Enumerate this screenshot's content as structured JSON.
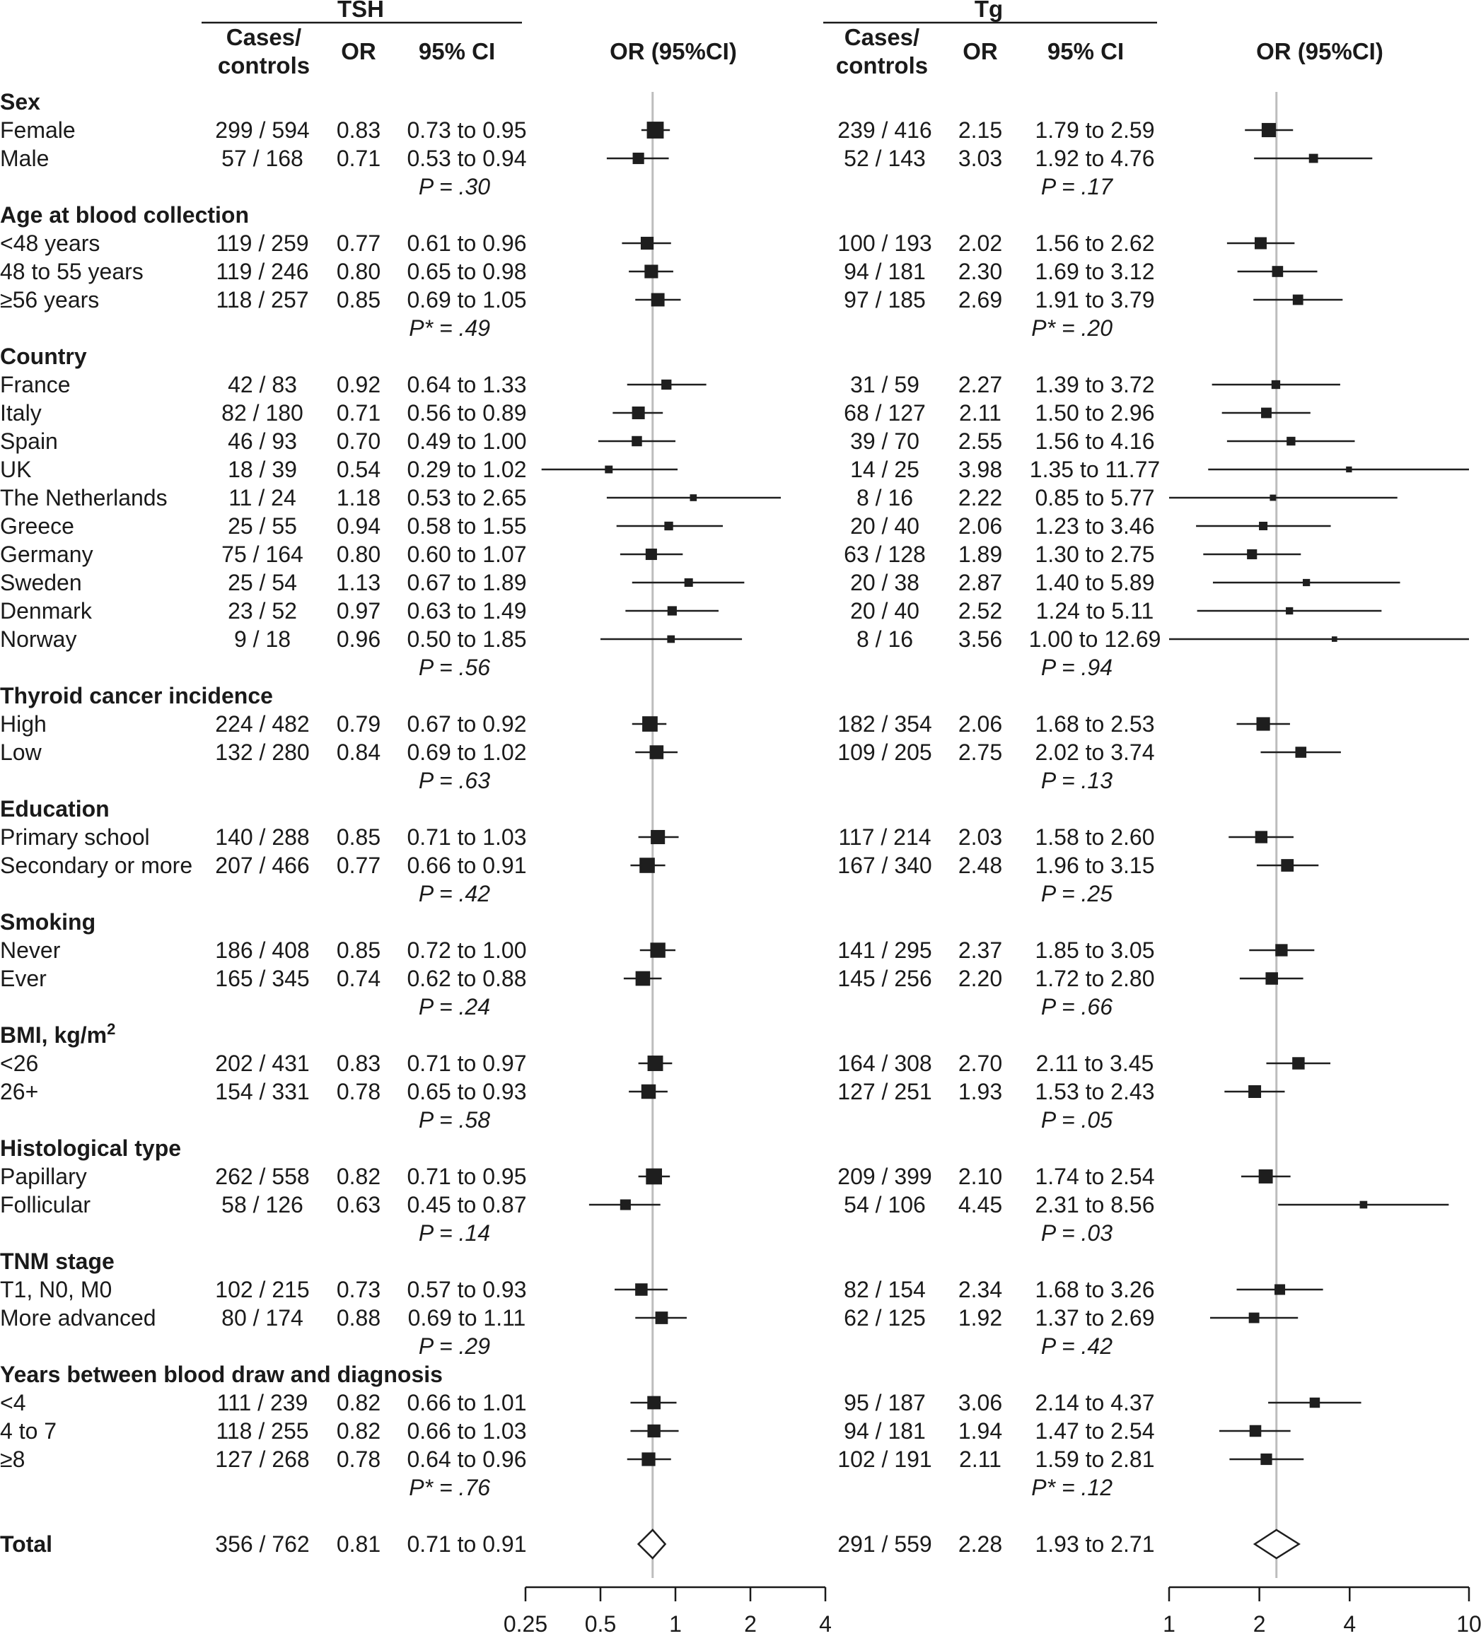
{
  "panels": {
    "tsh": {
      "title": "TSH"
    },
    "tg": {
      "title": "Tg"
    }
  },
  "columns": {
    "cases_line1": "Cases/",
    "cases_line2": "controls",
    "or": "OR",
    "ci": "95% CI",
    "plot": "OR (95%CI)"
  },
  "colors": {
    "box": "#1e1e1e",
    "line": "#1e1e1e",
    "refline": "#bdbdbd",
    "text": "#1a1a1a"
  },
  "chart_data": {
    "type": "forest",
    "x_scale": "log",
    "tsh_axis": {
      "range": [
        0.25,
        4
      ],
      "ticks": [
        0.25,
        0.5,
        1,
        2,
        4
      ],
      "tick_labels": [
        "0.25",
        "0.5",
        "1",
        "2",
        "4"
      ],
      "reference": 0.81
    },
    "tg_axis": {
      "range": [
        1,
        10
      ],
      "ticks": [
        1,
        2,
        4,
        10
      ],
      "tick_labels": [
        "1",
        "2",
        "4",
        "10"
      ],
      "reference": 2.28
    },
    "groups": [
      {
        "title": "Sex",
        "title_sup": "",
        "rows": [
          {
            "label": "Female",
            "tsh": {
              "cc": "299 / 594",
              "or": 0.83,
              "lo": 0.73,
              "hi": 0.95,
              "or_text": "0.83",
              "ci_text": "0.73 to 0.95"
            },
            "tg": {
              "cc": "239 / 416",
              "or": 2.15,
              "lo": 1.79,
              "hi": 2.59,
              "or_text": "2.15",
              "ci_text": "1.79 to 2.59"
            }
          },
          {
            "label": "Male",
            "tsh": {
              "cc": "57 / 168",
              "or": 0.71,
              "lo": 0.53,
              "hi": 0.94,
              "or_text": "0.71",
              "ci_text": "0.53 to 0.94"
            },
            "tg": {
              "cc": "52 / 143",
              "or": 3.03,
              "lo": 1.92,
              "hi": 4.76,
              "or_text": "3.03",
              "ci_text": "1.92 to 4.76"
            }
          }
        ],
        "p_tsh": "P = .30",
        "p_tg": "P = .17"
      },
      {
        "title": "Age at blood collection",
        "title_sup": "",
        "rows": [
          {
            "label": "<48 years",
            "tsh": {
              "cc": "119 / 259",
              "or": 0.77,
              "lo": 0.61,
              "hi": 0.96,
              "or_text": "0.77",
              "ci_text": "0.61 to 0.96"
            },
            "tg": {
              "cc": "100 / 193",
              "or": 2.02,
              "lo": 1.56,
              "hi": 2.62,
              "or_text": "2.02",
              "ci_text": "1.56 to 2.62"
            }
          },
          {
            "label": "48 to 55 years",
            "tsh": {
              "cc": "119 / 246",
              "or": 0.8,
              "lo": 0.65,
              "hi": 0.98,
              "or_text": "0.80",
              "ci_text": "0.65 to 0.98"
            },
            "tg": {
              "cc": "94 / 181",
              "or": 2.3,
              "lo": 1.69,
              "hi": 3.12,
              "or_text": "2.30",
              "ci_text": "1.69 to 3.12"
            }
          },
          {
            "label": "≥56 years",
            "tsh": {
              "cc": "118 / 257",
              "or": 0.85,
              "lo": 0.69,
              "hi": 1.05,
              "or_text": "0.85",
              "ci_text": "0.69 to 1.05"
            },
            "tg": {
              "cc": "97 / 185",
              "or": 2.69,
              "lo": 1.91,
              "hi": 3.79,
              "or_text": "2.69",
              "ci_text": "1.91 to 3.79"
            }
          }
        ],
        "p_tsh": "P* = .49",
        "p_tg": "P* = .20"
      },
      {
        "title": "Country",
        "title_sup": "",
        "rows": [
          {
            "label": "France",
            "tsh": {
              "cc": "42 / 83",
              "or": 0.92,
              "lo": 0.64,
              "hi": 1.33,
              "or_text": "0.92",
              "ci_text": "0.64 to 1.33"
            },
            "tg": {
              "cc": "31 / 59",
              "or": 2.27,
              "lo": 1.39,
              "hi": 3.72,
              "or_text": "2.27",
              "ci_text": "1.39 to 3.72"
            }
          },
          {
            "label": "Italy",
            "tsh": {
              "cc": "82 / 180",
              "or": 0.71,
              "lo": 0.56,
              "hi": 0.89,
              "or_text": "0.71",
              "ci_text": "0.56 to 0.89"
            },
            "tg": {
              "cc": "68 / 127",
              "or": 2.11,
              "lo": 1.5,
              "hi": 2.96,
              "or_text": "2.11",
              "ci_text": "1.50 to 2.96"
            }
          },
          {
            "label": "Spain",
            "tsh": {
              "cc": "46 / 93",
              "or": 0.7,
              "lo": 0.49,
              "hi": 1.0,
              "or_text": "0.70",
              "ci_text": "0.49 to 1.00"
            },
            "tg": {
              "cc": "39 / 70",
              "or": 2.55,
              "lo": 1.56,
              "hi": 4.16,
              "or_text": "2.55",
              "ci_text": "1.56 to 4.16"
            }
          },
          {
            "label": "UK",
            "tsh": {
              "cc": "18 / 39",
              "or": 0.54,
              "lo": 0.29,
              "hi": 1.02,
              "or_text": "0.54",
              "ci_text": "0.29 to 1.02"
            },
            "tg": {
              "cc": "14 / 25",
              "or": 3.98,
              "lo": 1.35,
              "hi": 11.77,
              "or_text": "3.98",
              "ci_text": "1.35 to 11.77"
            }
          },
          {
            "label": "The Netherlands",
            "tsh": {
              "cc": "11 / 24",
              "or": 1.18,
              "lo": 0.53,
              "hi": 2.65,
              "or_text": "1.18",
              "ci_text": "0.53 to 2.65"
            },
            "tg": {
              "cc": "8 / 16",
              "or": 2.22,
              "lo": 0.85,
              "hi": 5.77,
              "or_text": "2.22",
              "ci_text": "0.85 to 5.77"
            }
          },
          {
            "label": "Greece",
            "tsh": {
              "cc": "25 / 55",
              "or": 0.94,
              "lo": 0.58,
              "hi": 1.55,
              "or_text": "0.94",
              "ci_text": "0.58 to 1.55"
            },
            "tg": {
              "cc": "20 / 40",
              "or": 2.06,
              "lo": 1.23,
              "hi": 3.46,
              "or_text": "2.06",
              "ci_text": "1.23 to 3.46"
            }
          },
          {
            "label": "Germany",
            "tsh": {
              "cc": "75 / 164",
              "or": 0.8,
              "lo": 0.6,
              "hi": 1.07,
              "or_text": "0.80",
              "ci_text": "0.60 to 1.07"
            },
            "tg": {
              "cc": "63 / 128",
              "or": 1.89,
              "lo": 1.3,
              "hi": 2.75,
              "or_text": "1.89",
              "ci_text": "1.30 to 2.75"
            }
          },
          {
            "label": "Sweden",
            "tsh": {
              "cc": "25 / 54",
              "or": 1.13,
              "lo": 0.67,
              "hi": 1.89,
              "or_text": "1.13",
              "ci_text": "0.67 to 1.89"
            },
            "tg": {
              "cc": "20 / 38",
              "or": 2.87,
              "lo": 1.4,
              "hi": 5.89,
              "or_text": "2.87",
              "ci_text": "1.40 to 5.89"
            }
          },
          {
            "label": "Denmark",
            "tsh": {
              "cc": "23 / 52",
              "or": 0.97,
              "lo": 0.63,
              "hi": 1.49,
              "or_text": "0.97",
              "ci_text": "0.63 to 1.49"
            },
            "tg": {
              "cc": "20 / 40",
              "or": 2.52,
              "lo": 1.24,
              "hi": 5.11,
              "or_text": "2.52",
              "ci_text": "1.24 to 5.11"
            }
          },
          {
            "label": "Norway",
            "tsh": {
              "cc": "9 / 18",
              "or": 0.96,
              "lo": 0.5,
              "hi": 1.85,
              "or_text": "0.96",
              "ci_text": "0.50 to 1.85"
            },
            "tg": {
              "cc": "8 / 16",
              "or": 3.56,
              "lo": 1.0,
              "hi": 12.69,
              "or_text": "3.56",
              "ci_text": "1.00 to 12.69"
            }
          }
        ],
        "p_tsh": "P = .56",
        "p_tg": "P = .94"
      },
      {
        "title": "Thyroid cancer incidence",
        "title_sup": "",
        "rows": [
          {
            "label": "High",
            "tsh": {
              "cc": "224 / 482",
              "or": 0.79,
              "lo": 0.67,
              "hi": 0.92,
              "or_text": "0.79",
              "ci_text": "0.67 to 0.92"
            },
            "tg": {
              "cc": "182 / 354",
              "or": 2.06,
              "lo": 1.68,
              "hi": 2.53,
              "or_text": "2.06",
              "ci_text": "1.68 to 2.53"
            }
          },
          {
            "label": "Low",
            "tsh": {
              "cc": "132 / 280",
              "or": 0.84,
              "lo": 0.69,
              "hi": 1.02,
              "or_text": "0.84",
              "ci_text": "0.69 to 1.02"
            },
            "tg": {
              "cc": "109 / 205",
              "or": 2.75,
              "lo": 2.02,
              "hi": 3.74,
              "or_text": "2.75",
              "ci_text": "2.02 to 3.74"
            }
          }
        ],
        "p_tsh": "P = .63",
        "p_tg": "P = .13"
      },
      {
        "title": "Education",
        "title_sup": "",
        "rows": [
          {
            "label": "Primary school",
            "tsh": {
              "cc": "140 / 288",
              "or": 0.85,
              "lo": 0.71,
              "hi": 1.03,
              "or_text": "0.85",
              "ci_text": "0.71 to 1.03"
            },
            "tg": {
              "cc": "117 / 214",
              "or": 2.03,
              "lo": 1.58,
              "hi": 2.6,
              "or_text": "2.03",
              "ci_text": "1.58 to 2.60"
            }
          },
          {
            "label": "Secondary or more",
            "tsh": {
              "cc": "207 / 466",
              "or": 0.77,
              "lo": 0.66,
              "hi": 0.91,
              "or_text": "0.77",
              "ci_text": "0.66 to 0.91"
            },
            "tg": {
              "cc": "167 / 340",
              "or": 2.48,
              "lo": 1.96,
              "hi": 3.15,
              "or_text": "2.48",
              "ci_text": "1.96 to 3.15"
            }
          }
        ],
        "p_tsh": "P = .42",
        "p_tg": "P = .25"
      },
      {
        "title": "Smoking",
        "title_sup": "",
        "rows": [
          {
            "label": "Never",
            "tsh": {
              "cc": "186 / 408",
              "or": 0.85,
              "lo": 0.72,
              "hi": 1.0,
              "or_text": "0.85",
              "ci_text": "0.72 to 1.00"
            },
            "tg": {
              "cc": "141 / 295",
              "or": 2.37,
              "lo": 1.85,
              "hi": 3.05,
              "or_text": "2.37",
              "ci_text": "1.85 to 3.05"
            }
          },
          {
            "label": "Ever",
            "tsh": {
              "cc": "165 / 345",
              "or": 0.74,
              "lo": 0.62,
              "hi": 0.88,
              "or_text": "0.74",
              "ci_text": "0.62 to 0.88"
            },
            "tg": {
              "cc": "145 / 256",
              "or": 2.2,
              "lo": 1.72,
              "hi": 2.8,
              "or_text": "2.20",
              "ci_text": "1.72 to 2.80"
            }
          }
        ],
        "p_tsh": "P = .24",
        "p_tg": "P = .66"
      },
      {
        "title": "BMI, kg/m",
        "title_sup": "2",
        "rows": [
          {
            "label": "<26",
            "tsh": {
              "cc": "202 / 431",
              "or": 0.83,
              "lo": 0.71,
              "hi": 0.97,
              "or_text": "0.83",
              "ci_text": "0.71 to 0.97"
            },
            "tg": {
              "cc": "164 / 308",
              "or": 2.7,
              "lo": 2.11,
              "hi": 3.45,
              "or_text": "2.70",
              "ci_text": "2.11 to 3.45"
            }
          },
          {
            "label": "26+",
            "tsh": {
              "cc": "154 / 331",
              "or": 0.78,
              "lo": 0.65,
              "hi": 0.93,
              "or_text": "0.78",
              "ci_text": "0.65 to 0.93"
            },
            "tg": {
              "cc": "127 / 251",
              "or": 1.93,
              "lo": 1.53,
              "hi": 2.43,
              "or_text": "1.93",
              "ci_text": "1.53 to 2.43"
            }
          }
        ],
        "p_tsh": "P = .58",
        "p_tg": "P = .05"
      },
      {
        "title": "Histological type",
        "title_sup": "",
        "rows": [
          {
            "label": "Papillary",
            "tsh": {
              "cc": "262 / 558",
              "or": 0.82,
              "lo": 0.71,
              "hi": 0.95,
              "or_text": "0.82",
              "ci_text": "0.71 to 0.95"
            },
            "tg": {
              "cc": "209 / 399",
              "or": 2.1,
              "lo": 1.74,
              "hi": 2.54,
              "or_text": "2.10",
              "ci_text": "1.74 to 2.54"
            }
          },
          {
            "label": "Follicular",
            "tsh": {
              "cc": "58 / 126",
              "or": 0.63,
              "lo": 0.45,
              "hi": 0.87,
              "or_text": "0.63",
              "ci_text": "0.45 to 0.87"
            },
            "tg": {
              "cc": "54 / 106",
              "or": 4.45,
              "lo": 2.31,
              "hi": 8.56,
              "or_text": "4.45",
              "ci_text": "2.31 to 8.56"
            }
          }
        ],
        "p_tsh": "P = .14",
        "p_tg": "P = .03"
      },
      {
        "title": "TNM stage",
        "title_sup": "",
        "rows": [
          {
            "label": "T1, N0, M0",
            "tsh": {
              "cc": "102 / 215",
              "or": 0.73,
              "lo": 0.57,
              "hi": 0.93,
              "or_text": "0.73",
              "ci_text": "0.57 to 0.93"
            },
            "tg": {
              "cc": "82 / 154",
              "or": 2.34,
              "lo": 1.68,
              "hi": 3.26,
              "or_text": "2.34",
              "ci_text": "1.68 to 3.26"
            }
          },
          {
            "label": "More advanced",
            "tsh": {
              "cc": "80 / 174",
              "or": 0.88,
              "lo": 0.69,
              "hi": 1.11,
              "or_text": "0.88",
              "ci_text": "0.69 to 1.11"
            },
            "tg": {
              "cc": "62 / 125",
              "or": 1.92,
              "lo": 1.37,
              "hi": 2.69,
              "or_text": "1.92",
              "ci_text": "1.37 to 2.69"
            }
          }
        ],
        "p_tsh": "P = .29",
        "p_tg": "P = .42"
      },
      {
        "title": "Years between blood draw and diagnosis",
        "title_sup": "",
        "rows": [
          {
            "label": "<4",
            "tsh": {
              "cc": "111 / 239",
              "or": 0.82,
              "lo": 0.66,
              "hi": 1.01,
              "or_text": "0.82",
              "ci_text": "0.66 to 1.01"
            },
            "tg": {
              "cc": "95 / 187",
              "or": 3.06,
              "lo": 2.14,
              "hi": 4.37,
              "or_text": "3.06",
              "ci_text": "2.14 to 4.37"
            }
          },
          {
            "label": "4 to 7",
            "tsh": {
              "cc": "118 / 255",
              "or": 0.82,
              "lo": 0.66,
              "hi": 1.03,
              "or_text": "0.82",
              "ci_text": "0.66 to 1.03"
            },
            "tg": {
              "cc": "94 / 181",
              "or": 1.94,
              "lo": 1.47,
              "hi": 2.54,
              "or_text": "1.94",
              "ci_text": "1.47 to 2.54"
            }
          },
          {
            "label": "≥8",
            "tsh": {
              "cc": "127 / 268",
              "or": 0.78,
              "lo": 0.64,
              "hi": 0.96,
              "or_text": "0.78",
              "ci_text": "0.64 to 0.96"
            },
            "tg": {
              "cc": "102 / 191",
              "or": 2.11,
              "lo": 1.59,
              "hi": 2.81,
              "or_text": "2.11",
              "ci_text": "1.59 to 2.81"
            }
          }
        ],
        "p_tsh": "P* = .76",
        "p_tg": "P* = .12"
      }
    ],
    "total": {
      "label": "Total",
      "tsh": {
        "cc": "356 / 762",
        "or": 0.81,
        "lo": 0.71,
        "hi": 0.91,
        "or_text": "0.81",
        "ci_text": "0.71 to 0.91"
      },
      "tg": {
        "cc": "291 / 559",
        "or": 2.28,
        "lo": 1.93,
        "hi": 2.71,
        "or_text": "2.28",
        "ci_text": "1.93 to 2.71"
      }
    }
  }
}
